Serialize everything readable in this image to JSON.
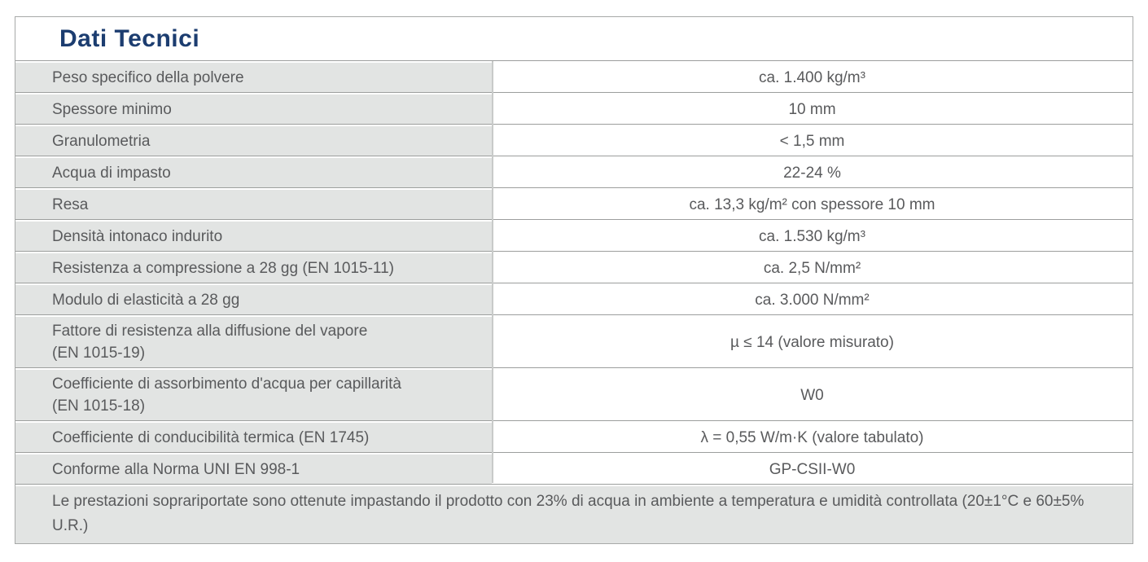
{
  "panel": {
    "title": "Dati Tecnici",
    "footer_note": "Le prestazioni soprariportate sono ottenute impastando il prodotto con 23% di acqua in ambiente a temperatura e umidità controllata (20±1°C e 60±5% U.R.)"
  },
  "table": {
    "rows": [
      {
        "label": "Peso specifico della polvere",
        "value": "ca. 1.400 kg/m³"
      },
      {
        "label": "Spessore minimo",
        "value": "10 mm"
      },
      {
        "label": "Granulometria",
        "value": "< 1,5 mm"
      },
      {
        "label": "Acqua di impasto",
        "value": "22-24 %"
      },
      {
        "label": "Resa",
        "value": "ca. 13,3 kg/m² con spessore 10 mm"
      },
      {
        "label": "Densità intonaco indurito",
        "value": "ca. 1.530 kg/m³"
      },
      {
        "label": "Resistenza a compressione a 28 gg (EN 1015-11)",
        "value": "ca. 2,5 N/mm²"
      },
      {
        "label": "Modulo di elasticità a 28 gg",
        "value": "ca. 3.000 N/mm²"
      },
      {
        "label": "Fattore di resistenza alla diffusione del vapore\n(EN 1015-19)",
        "value": "µ ≤ 14 (valore misurato)"
      },
      {
        "label": "Coefficiente di assorbimento d'acqua per capillarità\n(EN 1015-18)",
        "value": "W0"
      },
      {
        "label": "Coefficiente di conducibilità termica (EN 1745)",
        "value": "λ = 0,55 W/m·K (valore tabulato)"
      },
      {
        "label": "Conforme alla Norma UNI EN 998-1",
        "value": "GP-CSII-W0"
      }
    ]
  },
  "colors": {
    "title_blue": "#1c3d70",
    "label_cell_gray": "#e2e4e3",
    "text_gray": "#595a5c",
    "row_line_gray": "#9c9e9d",
    "column_divider_gray": "#c8cac9",
    "outer_border_gray": "#a7a9a8"
  }
}
